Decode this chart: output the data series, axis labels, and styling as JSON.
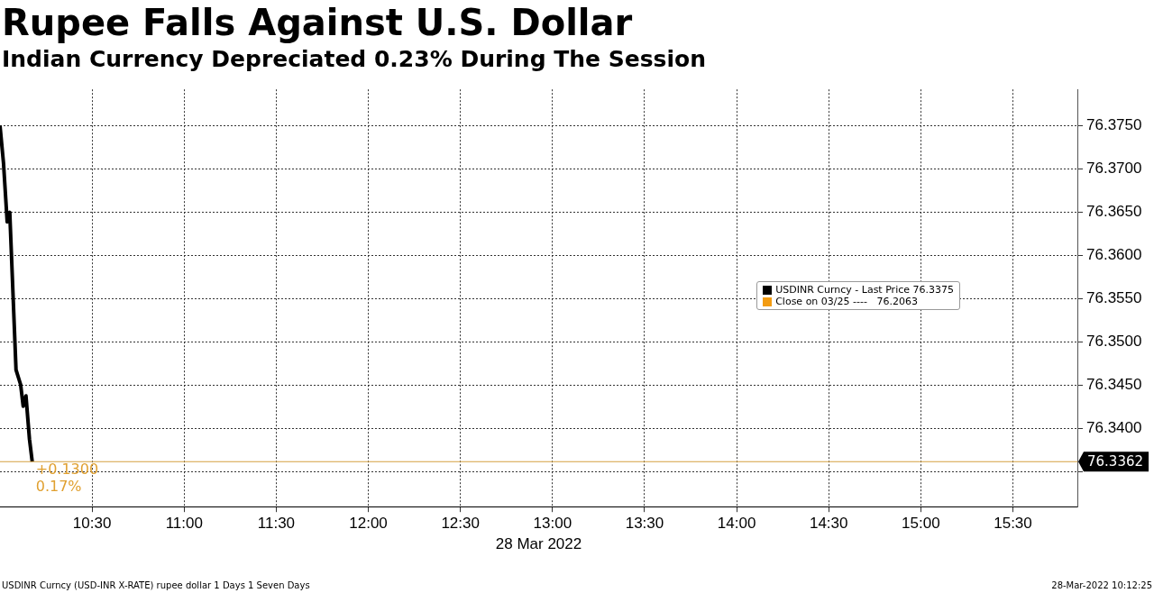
{
  "chart_data": {
    "type": "line",
    "title": "Rupee Falls Against U.S. Dollar",
    "subtitle": "Indian Currency Depreciated 0.23% During The Session",
    "xlabel": "28 Mar 2022",
    "x": [
      10.0,
      10.019,
      10.039,
      10.053,
      10.087,
      10.112,
      10.126,
      10.141,
      10.16,
      10.175
    ],
    "series": [
      {
        "name": "USDINR Curncy - Last Price 76.3375",
        "color": "#000000",
        "values": [
          76.375,
          76.3707,
          76.3639,
          76.365,
          76.3468,
          76.3451,
          76.3426,
          76.3438,
          76.3388,
          76.3362
        ]
      },
      {
        "name": "Close on 03/25 ----   76.2063",
        "color": "#f39c12",
        "values": [
          null,
          null,
          null,
          null,
          null,
          null,
          null,
          null,
          null,
          null
        ]
      }
    ],
    "xlim": [
      10.0,
      15.85
    ],
    "xticks": [
      {
        "value": 10.5,
        "label": "10:30"
      },
      {
        "value": 11,
        "label": "11:00"
      },
      {
        "value": 11.5,
        "label": "11:30"
      },
      {
        "value": 12,
        "label": "12:00"
      },
      {
        "value": 12.5,
        "label": "12:30"
      },
      {
        "value": 13,
        "label": "13:00"
      },
      {
        "value": 13.5,
        "label": "13:30"
      },
      {
        "value": 14,
        "label": "14:00"
      },
      {
        "value": 14.5,
        "label": "14:30"
      },
      {
        "value": 15,
        "label": "15:00"
      },
      {
        "value": 15.5,
        "label": "15:30"
      }
    ],
    "ylim": [
      76.331,
      76.3792
    ],
    "yticks": [
      {
        "value": 76.335,
        "label": null
      },
      {
        "value": 76.34,
        "label": "76.3400"
      },
      {
        "value": 76.345,
        "label": "76.3450"
      },
      {
        "value": 76.35,
        "label": "76.3500"
      },
      {
        "value": 76.355,
        "label": "76.3550"
      },
      {
        "value": 76.36,
        "label": "76.3600"
      },
      {
        "value": 76.365,
        "label": "76.3650"
      },
      {
        "value": 76.37,
        "label": "76.3700"
      },
      {
        "value": 76.375,
        "label": "76.3750"
      }
    ],
    "grid": true,
    "legend": "right",
    "ref_lines": [
      {
        "axis": "y",
        "value": 76.3362,
        "label": "76.3362",
        "color": "#d4a040"
      }
    ],
    "annotations": [
      {
        "text": "+0.1300",
        "x": 10.175,
        "y": 76.3362
      },
      {
        "text": "0.17%",
        "x": 10.175,
        "y": 76.3362
      },
      "USDINR Curncy (USD-INR X-RATE) rupee dollar 1 Days 1 Seven Days",
      "28-Mar-2022 10:12:25"
    ]
  }
}
